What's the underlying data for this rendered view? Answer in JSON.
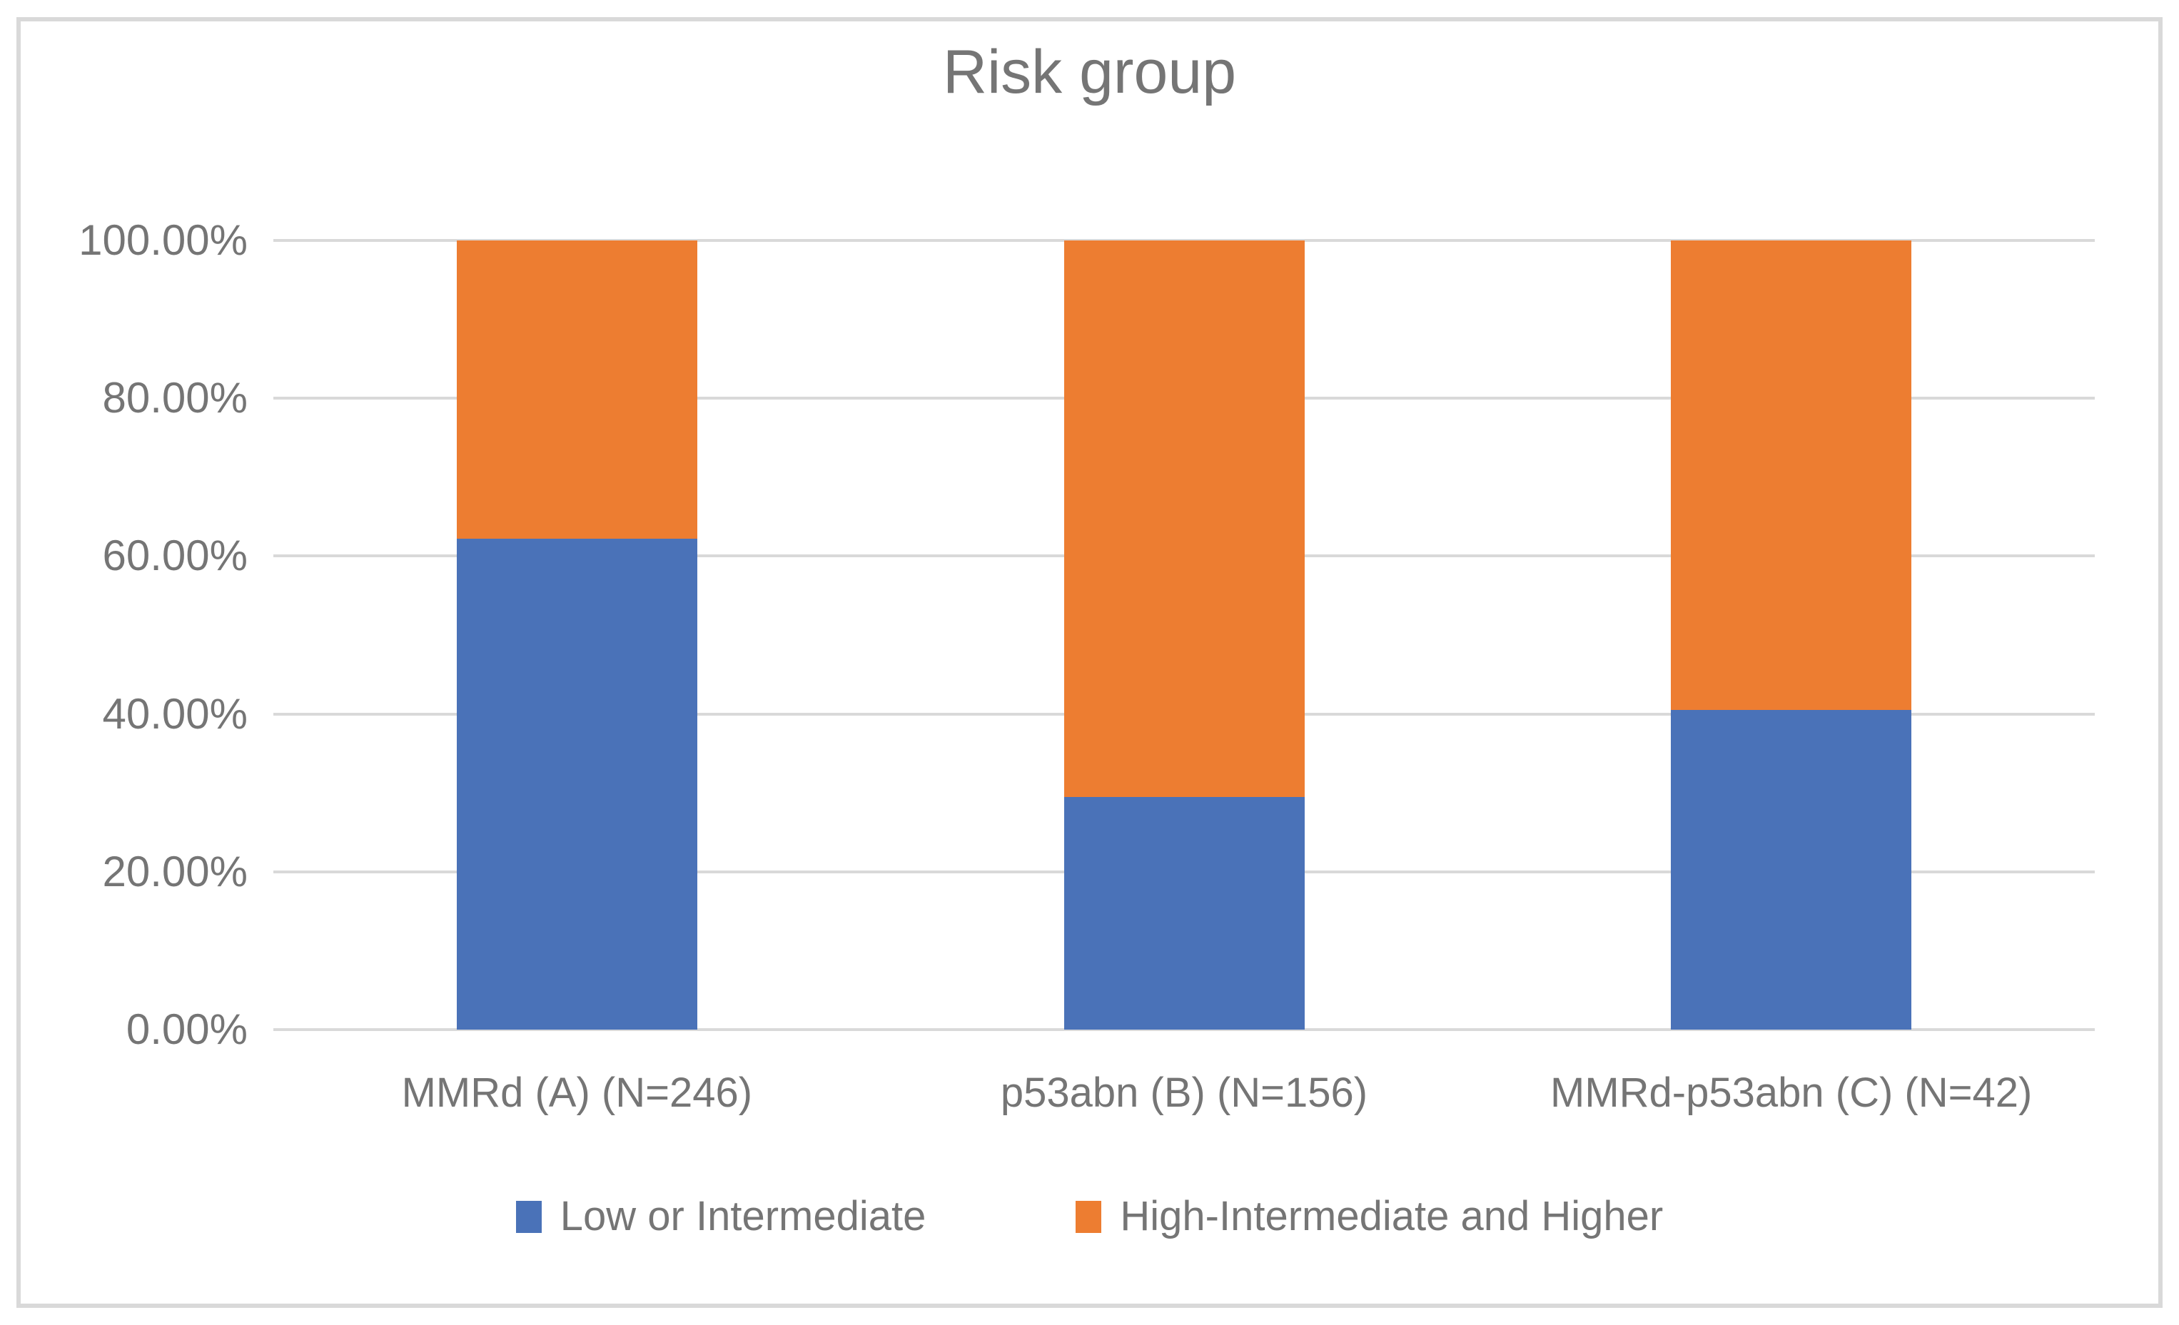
{
  "title": "Risk group",
  "chart_data": {
    "type": "bar",
    "subtype": "stacked-100-percent",
    "title": "Risk group",
    "categories": [
      "MMRd (A) (N=246)",
      "p53abn (B) (N=156)",
      "MMRd-p53abn (C) (N=42)"
    ],
    "series": [
      {
        "name": "Low or Intermediate",
        "color": "#4A72B8",
        "values": [
          62.2,
          29.5,
          40.5
        ]
      },
      {
        "name": "High-Intermediate and Higher",
        "color": "#ED7D31",
        "values": [
          37.8,
          70.5,
          59.5
        ]
      }
    ],
    "xlabel": "",
    "ylabel": "",
    "ylim": [
      0,
      100
    ],
    "y_tick_labels": [
      "0.00%",
      "20.00%",
      "40.00%",
      "60.00%",
      "80.00%",
      "100.00%"
    ],
    "y_tick_values": [
      0,
      20,
      40,
      60,
      80,
      100
    ],
    "grid": "horizontal",
    "legend_position": "bottom",
    "colors": {
      "gridline": "#D9D9D9",
      "frame_border": "#D9D9D9",
      "text": "#757575",
      "background": "#FFFFFF"
    }
  }
}
